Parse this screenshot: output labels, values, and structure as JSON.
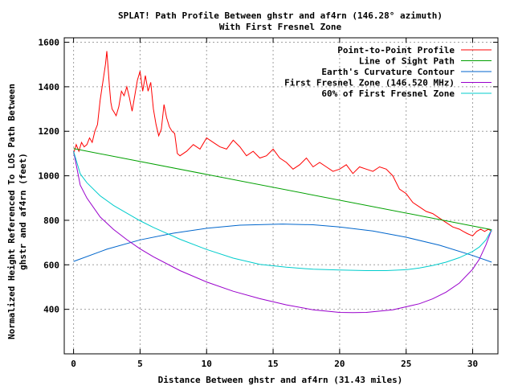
{
  "chart_data": {
    "type": "line",
    "title": "SPLAT! Path Profile Between ghstr and af4rn (146.28° azimuth)",
    "subtitle": "With First Fresnel Zone",
    "xlabel": "Distance Between ghstr and af4rn (31.43 miles)",
    "ylabel_line1": "Normalized Height Referenced To LOS Path Between",
    "ylabel_line2": "ghstr and af4rn (feet)",
    "xlim": [
      -0.7,
      31.9
    ],
    "ylim": [
      200,
      1620
    ],
    "x_ticks": [
      0,
      5,
      10,
      15,
      20,
      25,
      30
    ],
    "y_ticks": [
      400,
      600,
      800,
      1000,
      1200,
      1400,
      1600
    ],
    "grid": true,
    "legend_position": "top-right",
    "series": [
      {
        "name": "Point-to-Point Profile",
        "color": "#ff0000",
        "x": [
          0,
          0.2,
          0.4,
          0.6,
          0.8,
          1.0,
          1.2,
          1.4,
          1.6,
          1.8,
          2.0,
          2.2,
          2.4,
          2.5,
          2.6,
          2.7,
          2.8,
          2.9,
          3.0,
          3.2,
          3.4,
          3.6,
          3.8,
          4.0,
          4.2,
          4.4,
          4.6,
          4.8,
          5.0,
          5.2,
          5.4,
          5.6,
          5.8,
          6.0,
          6.2,
          6.4,
          6.6,
          6.8,
          7.0,
          7.2,
          7.4,
          7.6,
          7.8,
          8.0,
          8.5,
          9.0,
          9.5,
          10.0,
          10.5,
          11.0,
          11.5,
          12.0,
          12.5,
          13.0,
          13.5,
          14.0,
          14.5,
          15.0,
          15.5,
          16.0,
          16.5,
          17.0,
          17.5,
          18.0,
          18.5,
          19.0,
          19.5,
          20.0,
          20.5,
          21.0,
          21.5,
          22.0,
          22.5,
          23.0,
          23.5,
          24.0,
          24.5,
          25.0,
          25.5,
          26.0,
          26.5,
          27.0,
          27.5,
          28.0,
          28.5,
          29.0,
          29.3,
          29.6,
          30.0,
          30.3,
          30.6,
          30.9,
          31.2,
          31.43
        ],
        "y": [
          1100,
          1140,
          1110,
          1150,
          1130,
          1140,
          1170,
          1150,
          1200,
          1230,
          1340,
          1420,
          1500,
          1560,
          1480,
          1400,
          1330,
          1300,
          1290,
          1270,
          1310,
          1380,
          1360,
          1400,
          1350,
          1290,
          1360,
          1430,
          1470,
          1380,
          1450,
          1380,
          1420,
          1300,
          1230,
          1180,
          1210,
          1320,
          1260,
          1220,
          1200,
          1190,
          1100,
          1090,
          1110,
          1140,
          1120,
          1170,
          1150,
          1130,
          1120,
          1160,
          1130,
          1090,
          1110,
          1080,
          1090,
          1120,
          1080,
          1060,
          1030,
          1050,
          1080,
          1040,
          1060,
          1040,
          1020,
          1030,
          1050,
          1010,
          1040,
          1030,
          1020,
          1040,
          1030,
          1000,
          940,
          920,
          880,
          860,
          840,
          830,
          810,
          790,
          770,
          760,
          750,
          740,
          730,
          750,
          760,
          750,
          760,
          750
        ]
      },
      {
        "name": "Line of Sight Path",
        "color": "#00a000",
        "x": [
          0,
          31.43
        ],
        "y": [
          1122,
          758
        ]
      },
      {
        "name": "Earth's Curvature Contour",
        "color": "#0066cc",
        "x": [
          0,
          2.5,
          5,
          7.5,
          10,
          12.5,
          15.7,
          18,
          20,
          22.5,
          25,
          27.5,
          30,
          31.43
        ],
        "y": [
          615,
          670,
          712,
          742,
          764,
          778,
          783,
          780,
          770,
          752,
          724,
          688,
          642,
          612
        ]
      },
      {
        "name": "First Fresnel Zone (146.520 MHz)",
        "color": "#9900cc",
        "x": [
          0,
          0.5,
          1,
          2,
          3,
          4,
          5,
          6,
          8,
          10,
          12,
          14,
          16,
          18,
          20,
          21,
          22,
          24,
          26,
          27,
          28,
          29,
          30,
          30.5,
          31,
          31.43
        ],
        "y": [
          1110,
          958,
          900,
          815,
          759,
          713,
          672,
          636,
          574,
          523,
          481,
          448,
          420,
          398,
          386,
          385,
          386,
          398,
          425,
          447,
          477,
          518,
          580,
          625,
          690,
          758
        ]
      },
      {
        "name": "60% of First Fresnel Zone",
        "color": "#00cccc",
        "x": [
          0,
          0.5,
          1,
          2,
          3,
          4,
          5,
          6,
          8,
          10,
          12,
          14,
          16,
          18,
          20,
          22,
          23.5,
          25,
          26,
          27,
          28,
          29,
          30,
          30.5,
          31,
          31.43
        ],
        "y": [
          1110,
          1009,
          969,
          910,
          867,
          832,
          798,
          768,
          715,
          669,
          630,
          602,
          589,
          580,
          577,
          574,
          574,
          578,
          586,
          597,
          612,
          632,
          660,
          680,
          712,
          758
        ]
      }
    ]
  }
}
